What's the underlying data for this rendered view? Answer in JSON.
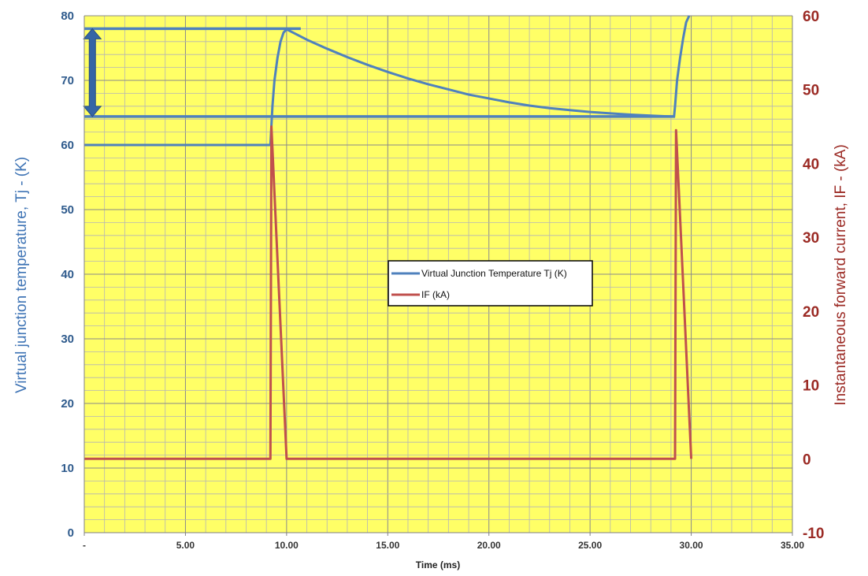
{
  "chart_data": {
    "type": "line",
    "xlabel": "Time (ms)",
    "ylabel_left": "Virtual junction temperature, Tj - (K)",
    "ylabel_right": "Instantaneous forward current, IF - (kA)",
    "xlim": [
      0,
      35
    ],
    "ylim_left": [
      0,
      80
    ],
    "ylim_right": [
      -10,
      60
    ],
    "x_tick_labels": [
      "-",
      "5.00",
      "10.00",
      "15.00",
      "20.00",
      "25.00",
      "30.00",
      "35.00"
    ],
    "y_left_tick_labels": [
      "0",
      "10",
      "20",
      "30",
      "40",
      "50",
      "60",
      "70",
      "80"
    ],
    "y_right_tick_labels": [
      "-10",
      "0",
      "10",
      "20",
      "30",
      "40",
      "50",
      "60"
    ],
    "grid": true,
    "plot_background": "#ffff66",
    "legend_placement": "center",
    "series": [
      {
        "name": "Virtual Junction Temperature Tj (K)",
        "axis": "left",
        "color": "#4f81bd",
        "x": [
          0,
          9.2,
          9.25,
          9.3,
          9.4,
          9.55,
          9.7,
          9.85,
          10.0,
          11.0,
          12.0,
          13.0,
          14.0,
          15.0,
          16.0,
          17.0,
          18.0,
          19.0,
          20.0,
          21.0,
          22.0,
          23.0,
          24.0,
          25.0,
          26.0,
          27.0,
          28.0,
          29.0,
          29.15,
          29.2,
          29.3,
          29.45,
          29.6,
          29.75,
          29.9
        ],
        "values": [
          60,
          60,
          63,
          66,
          70,
          73.5,
          76,
          77.4,
          77.9,
          76.3,
          74.9,
          73.6,
          72.4,
          71.3,
          70.3,
          69.4,
          68.6,
          67.8,
          67.2,
          66.6,
          66.1,
          65.7,
          65.4,
          65.1,
          64.9,
          64.7,
          64.55,
          64.4,
          64.4,
          66,
          70,
          73.5,
          76.5,
          79,
          80
        ]
      },
      {
        "name": "IF (kA)",
        "axis": "right",
        "color": "#c0504d",
        "x": [
          0,
          9.2,
          9.25,
          10.0,
          29.2,
          29.25,
          30.0
        ],
        "values": [
          0,
          0,
          45,
          0,
          0,
          44.5,
          0
        ]
      }
    ],
    "annotations": {
      "reference_line_top": 78,
      "reference_line_top_x": [
        0,
        10.7
      ],
      "reference_line_bottom": 64.4,
      "reference_line_bottom_x": [
        0,
        29.2
      ],
      "double_arrow": {
        "x": 0.4,
        "from": 64.4,
        "to": 78,
        "color": "#3565a5"
      }
    }
  }
}
